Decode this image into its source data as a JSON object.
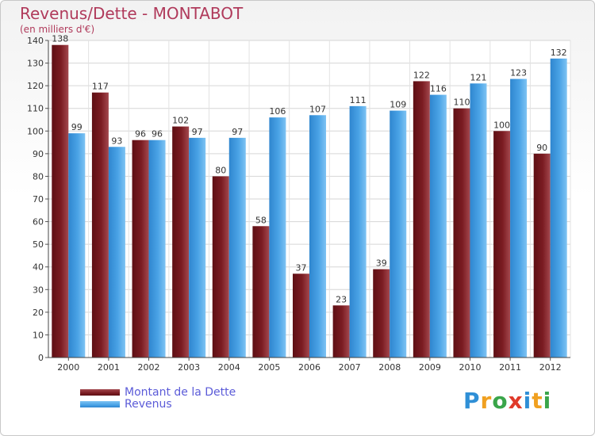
{
  "chart_data": {
    "type": "bar",
    "title": "Revenus/Dette - MONTABOT",
    "subtitle": "(en milliers d'€)",
    "categories": [
      "2000",
      "2001",
      "2002",
      "2003",
      "2004",
      "2005",
      "2006",
      "2007",
      "2008",
      "2009",
      "2010",
      "2011",
      "2012"
    ],
    "series": [
      {
        "name": "Montant de la Dette",
        "color": "#7b1c22",
        "values": [
          138,
          117,
          96,
          102,
          80,
          58,
          37,
          23,
          39,
          122,
          110,
          100,
          90
        ]
      },
      {
        "name": "Revenus",
        "color": "#4aa3e6",
        "values": [
          99,
          93,
          96,
          97,
          97,
          106,
          107,
          111,
          109,
          116,
          121,
          123,
          132
        ]
      }
    ],
    "ylim": [
      0,
      140
    ],
    "yticks": [
      0,
      10,
      20,
      30,
      40,
      50,
      60,
      70,
      80,
      90,
      100,
      110,
      120,
      130,
      140
    ],
    "grid": true,
    "legend_position": "bottom-left"
  },
  "brand": {
    "letters": [
      {
        "ch": "P",
        "color": "#2f8fd6"
      },
      {
        "ch": "r",
        "color": "#f0a020"
      },
      {
        "ch": "o",
        "color": "#3aa54a"
      },
      {
        "ch": "x",
        "color": "#e03a2a"
      },
      {
        "ch": "i",
        "color": "#2f8fd6"
      },
      {
        "ch": "t",
        "color": "#f0a020"
      },
      {
        "ch": "i",
        "color": "#3aa54a"
      }
    ]
  }
}
